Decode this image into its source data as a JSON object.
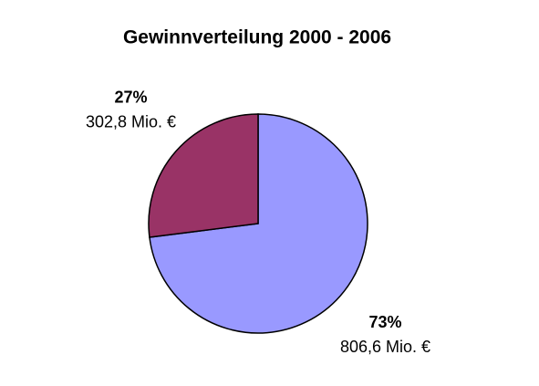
{
  "chart_data": {
    "type": "pie",
    "title": "Gewinnverteilung 2000 - 2006",
    "values": [
      73,
      27
    ],
    "value_labels": [
      "73%",
      "27%"
    ],
    "amount_labels": [
      "806,6 Mio. €",
      "302,8 Mio. €"
    ],
    "colors": [
      "#9999ff",
      "#993366"
    ]
  }
}
